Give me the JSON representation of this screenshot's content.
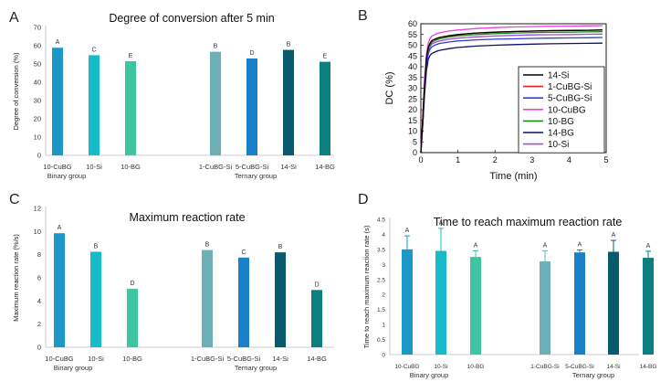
{
  "chart_data": [
    {
      "panel": "A",
      "type": "bar",
      "title": "Degree of conversion after 5 min",
      "ylabel": "Degree of conversion (%)",
      "ylim": [
        0,
        70
      ],
      "yticks": [
        0,
        10,
        20,
        30,
        40,
        50,
        60,
        70
      ],
      "categories": [
        "10-CuBG",
        "10-Si",
        "10-BG",
        "1-CuBG-Si",
        "5-CuBG-Si",
        "14-Si",
        "14-BG"
      ],
      "values": [
        58.9,
        54.8,
        51.5,
        56.7,
        53.0,
        57.7,
        51.2
      ],
      "letters": [
        "A",
        "C",
        "E",
        "B",
        "D",
        "B",
        "E"
      ],
      "colors": [
        "#1b98c8",
        "#17bccb",
        "#3ec6a3",
        "#6dafb6",
        "#1a80c8",
        "#065c6c",
        "#0c7f80"
      ],
      "groups": [
        {
          "label": "Binary group",
          "indices": [
            0,
            1,
            2
          ]
        },
        {
          "label": "Ternary group",
          "indices": [
            3,
            4,
            5,
            6
          ]
        }
      ]
    },
    {
      "panel": "B",
      "type": "line",
      "xlabel": "Time (min)",
      "ylabel": "DC (%)",
      "xlim": [
        0,
        5
      ],
      "ylim": [
        0,
        60
      ],
      "xticks": [
        0,
        1,
        2,
        3,
        4,
        5
      ],
      "yticks": [
        0,
        5,
        10,
        15,
        20,
        25,
        30,
        35,
        40,
        45,
        50,
        55,
        60
      ],
      "x": [
        0,
        0.05,
        0.1,
        0.15,
        0.2,
        0.25,
        0.3,
        0.4,
        0.5,
        0.75,
        1,
        1.5,
        2,
        2.5,
        3,
        3.5,
        4,
        4.5,
        4.9
      ],
      "series": [
        {
          "name": "14-Si",
          "color": "#000000",
          "values": [
            0,
            15,
            32,
            44,
            49,
            51,
            52.2,
            53,
            53.6,
            54.4,
            55,
            55.7,
            56.1,
            56.4,
            56.6,
            56.8,
            56.9,
            57.0,
            57.1
          ]
        },
        {
          "name": "1-CuBG-Si",
          "color": "#e02020",
          "values": [
            0,
            15,
            32,
            44,
            49,
            51,
            52.2,
            53,
            53.6,
            54.4,
            55,
            55.7,
            56.1,
            56.4,
            56.6,
            56.8,
            56.9,
            57.0,
            57.1
          ]
        },
        {
          "name": "5-CuBG-Si",
          "color": "#2f3fd8",
          "values": [
            0,
            13,
            29,
            41,
            46,
            48.2,
            49.3,
            50.2,
            50.8,
            51.5,
            52,
            52.5,
            52.8,
            53.0,
            53.2,
            53.3,
            53.4,
            53.5,
            53.6
          ]
        },
        {
          "name": "10-CuBG",
          "color": "#e642e6",
          "values": [
            0,
            16,
            34,
            46,
            51,
            53.3,
            54.3,
            55.2,
            55.8,
            56.6,
            57.1,
            57.8,
            58.2,
            58.5,
            58.7,
            58.8,
            58.9,
            59.0,
            59.1
          ]
        },
        {
          "name": "10-BG",
          "color": "#1a8c1a",
          "values": [
            0,
            15,
            32,
            43,
            48,
            50,
            51.4,
            52.3,
            53,
            53.8,
            54.4,
            55,
            55.4,
            55.7,
            55.9,
            56.0,
            56.1,
            56.2,
            56.3
          ]
        },
        {
          "name": "14-BG",
          "color": "#10106a",
          "values": [
            0,
            12,
            27,
            38,
            43.5,
            45.3,
            46.2,
            47,
            47.6,
            48.4,
            49,
            49.6,
            50,
            50.3,
            50.5,
            50.7,
            50.8,
            50.9,
            51.0
          ]
        },
        {
          "name": "10-Si",
          "color": "#a64bd6",
          "values": [
            0,
            14,
            30,
            42,
            47,
            49.5,
            50.6,
            51.4,
            52,
            52.8,
            53.3,
            53.9,
            54.3,
            54.6,
            54.8,
            54.9,
            55.0,
            55.1,
            55.2
          ]
        }
      ]
    },
    {
      "panel": "C",
      "type": "bar",
      "title": "Maximum reaction rate",
      "ylabel": "Maximum reaction rate (%/s)",
      "ylim": [
        0,
        12
      ],
      "yticks": [
        0,
        2,
        4,
        6,
        8,
        10,
        12
      ],
      "categories": [
        "10-CuBG",
        "10-Si",
        "10-BG",
        "1-CuBG-Si",
        "5-CuBG-Si",
        "14-Si",
        "14-BG"
      ],
      "values": [
        9.85,
        8.25,
        5.05,
        8.4,
        7.75,
        8.2,
        4.95
      ],
      "letters": [
        "A",
        "B",
        "D",
        "B",
        "C",
        "B",
        "D"
      ],
      "colors": [
        "#1b98c8",
        "#17bccb",
        "#3ec6a3",
        "#6dafb6",
        "#1a80c8",
        "#065c6c",
        "#0c7f80"
      ],
      "groups": [
        {
          "label": "Binary group",
          "indices": [
            0,
            1,
            2
          ]
        },
        {
          "label": "Ternary group",
          "indices": [
            3,
            4,
            5,
            6
          ]
        }
      ]
    },
    {
      "panel": "D",
      "type": "bar",
      "title": "Time to reach maximum reaction rate",
      "ylabel": "Time to reach maximum reaction rate (s)",
      "ylim": [
        0,
        4.5
      ],
      "yticks": [
        0,
        0.5,
        1,
        1.5,
        2,
        2.5,
        3,
        3.5,
        4,
        4.5
      ],
      "categories": [
        "10-CuBG",
        "10-Si",
        "10-BG",
        "1-CuBG-Si",
        "5-CuBG-Si",
        "14-Si",
        "14-BG"
      ],
      "values": [
        3.5,
        3.45,
        3.25,
        3.1,
        3.4,
        3.42,
        3.22
      ],
      "errors": [
        0.45,
        0.75,
        0.2,
        0.35,
        0.08,
        0.38,
        0.22
      ],
      "letters": [
        "A",
        "A",
        "A",
        "A",
        "A",
        "A",
        "A"
      ],
      "colors": [
        "#1b98c8",
        "#17bccb",
        "#3ec6a3",
        "#6dafb6",
        "#1a80c8",
        "#065c6c",
        "#0c7f80"
      ],
      "groups": [
        {
          "label": "Binary group",
          "indices": [
            0,
            1,
            2
          ]
        },
        {
          "label": "Ternary group",
          "indices": [
            3,
            4,
            5,
            6
          ]
        }
      ]
    }
  ]
}
